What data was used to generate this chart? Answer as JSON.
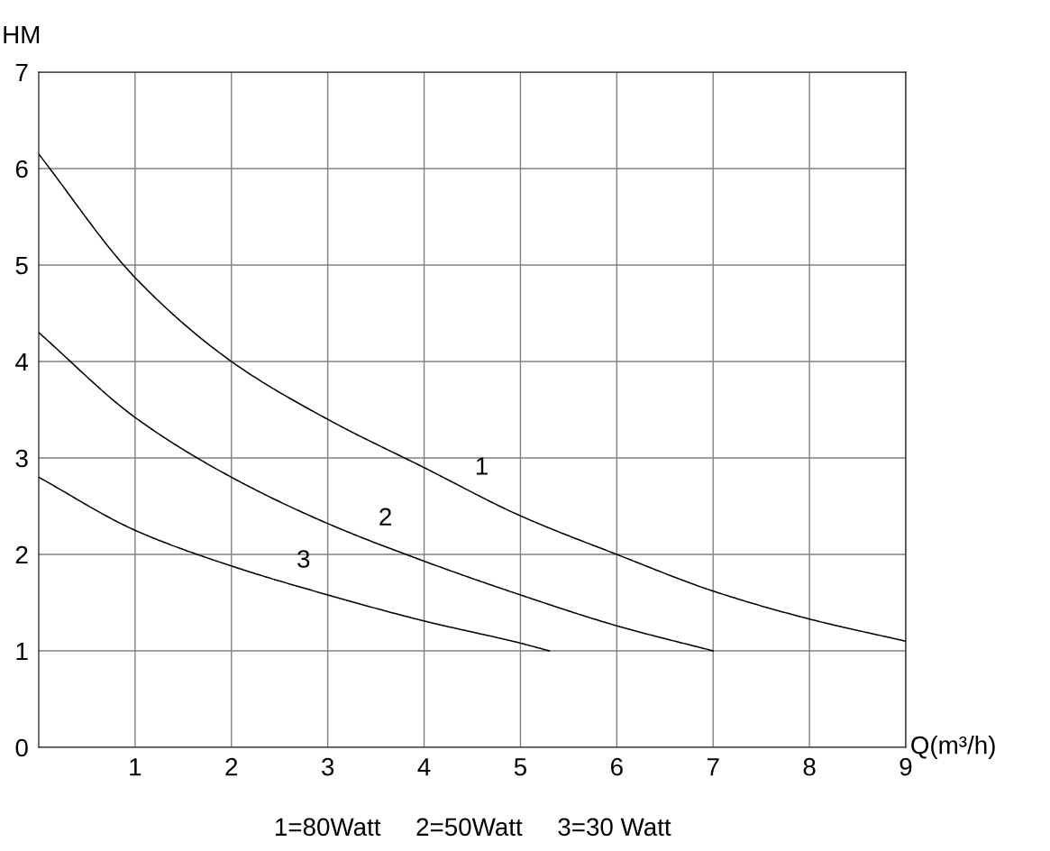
{
  "chart_data": {
    "type": "line",
    "xlabel": "Q(m³/h)",
    "ylabel": "HM",
    "xlim": [
      0,
      9
    ],
    "ylim": [
      0,
      7
    ],
    "xticks": [
      1,
      2,
      3,
      4,
      5,
      6,
      7,
      8,
      9
    ],
    "yticks": [
      0,
      1,
      2,
      3,
      4,
      5,
      6,
      7
    ],
    "grid": true,
    "marker": "none",
    "line_style": "solid",
    "series": [
      {
        "name": "1",
        "color": "#000000",
        "x": [
          0,
          1,
          2,
          3,
          4,
          5,
          6,
          7,
          8,
          9
        ],
        "values": [
          6.15,
          4.87,
          4.0,
          3.4,
          2.9,
          2.4,
          2.0,
          1.62,
          1.33,
          1.1
        ]
      },
      {
        "name": "2",
        "color": "#000000",
        "x": [
          0,
          1,
          2,
          3,
          4,
          5,
          6,
          7
        ],
        "values": [
          4.3,
          3.42,
          2.8,
          2.32,
          1.93,
          1.58,
          1.26,
          1.0
        ]
      },
      {
        "name": "3",
        "color": "#000000",
        "x": [
          0,
          1,
          2,
          3,
          4,
          5,
          5.3
        ],
        "values": [
          2.8,
          2.25,
          1.88,
          1.58,
          1.31,
          1.08,
          1.0
        ]
      }
    ],
    "annotations": [
      "1=80Watt     2=50Watt     3=30 Watt"
    ]
  }
}
